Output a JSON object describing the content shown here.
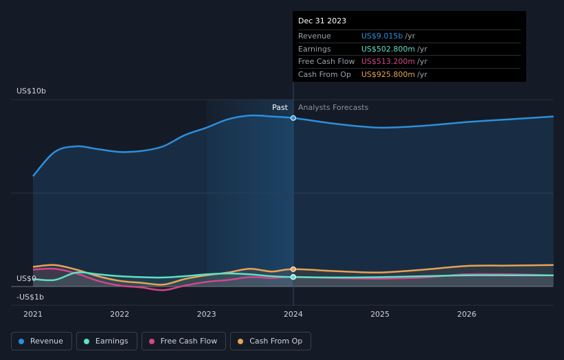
{
  "chart_data": {
    "type": "line",
    "x_ticks": [
      "2021",
      "2022",
      "2023",
      "2024",
      "2025",
      "2026"
    ],
    "y_tick_labels": {
      "top": "US$10b",
      "zero": "US$0",
      "bottom": "-US$1b"
    },
    "ylim": [
      -1000,
      10000
    ],
    "past_label": "Past",
    "forecast_label": "Analysts Forecasts",
    "series": [
      {
        "name": "Revenue",
        "key": "revenue",
        "color": "#2d8fdd",
        "x": [
          2021.0,
          2021.25,
          2021.5,
          2021.75,
          2022.0,
          2022.25,
          2022.5,
          2022.75,
          2023.0,
          2023.25,
          2023.5,
          2023.75,
          2024.0,
          2024.5,
          2025.0,
          2025.5,
          2026.0,
          2026.5,
          2027.0
        ],
        "values": [
          5900,
          7200,
          7500,
          7350,
          7200,
          7250,
          7500,
          8100,
          8500,
          8950,
          9150,
          9100,
          9015,
          8700,
          8500,
          8600,
          8800,
          8950,
          9100
        ]
      },
      {
        "name": "Earnings",
        "key": "earnings",
        "color": "#5ee0c8",
        "x": [
          2021.0,
          2021.25,
          2021.5,
          2021.75,
          2022.0,
          2022.25,
          2022.5,
          2022.75,
          2023.0,
          2023.25,
          2023.5,
          2023.75,
          2024.0,
          2024.5,
          2025.0,
          2025.5,
          2026.0,
          2026.5,
          2027.0
        ],
        "values": [
          400,
          350,
          750,
          650,
          550,
          500,
          480,
          550,
          650,
          700,
          650,
          550,
          502.8,
          480,
          500,
          550,
          600,
          600,
          600
        ]
      },
      {
        "name": "Free Cash Flow",
        "key": "fcf",
        "color": "#d2468c",
        "x": [
          2021.0,
          2021.25,
          2021.5,
          2021.75,
          2022.0,
          2022.25,
          2022.5,
          2022.75,
          2023.0,
          2023.25,
          2023.5,
          2023.75,
          2024.0,
          2024.5,
          2025.0,
          2025.5,
          2026.0,
          2026.5,
          2027.0
        ],
        "values": [
          900,
          950,
          700,
          300,
          50,
          -50,
          -200,
          50,
          250,
          350,
          500,
          450,
          513.2,
          450,
          420,
          480,
          650,
          650,
          600
        ]
      },
      {
        "name": "Cash From Op",
        "key": "cfo",
        "color": "#e8a356",
        "x": [
          2021.0,
          2021.25,
          2021.5,
          2021.75,
          2022.0,
          2022.25,
          2022.5,
          2022.75,
          2023.0,
          2023.25,
          2023.5,
          2023.75,
          2024.0,
          2024.5,
          2025.0,
          2025.5,
          2026.0,
          2026.5,
          2027.0
        ],
        "values": [
          1050,
          1150,
          900,
          550,
          300,
          200,
          100,
          400,
          600,
          750,
          950,
          800,
          925.8,
          820,
          750,
          900,
          1100,
          1120,
          1150
        ]
      }
    ],
    "tooltip": {
      "date": "Dec 31 2023",
      "unit": "/yr",
      "rows": [
        {
          "label": "Revenue",
          "value": "US$9.015b",
          "color": "#2d8fdd"
        },
        {
          "label": "Earnings",
          "value": "US$502.800m",
          "color": "#5ee0c8"
        },
        {
          "label": "Free Cash Flow",
          "value": "US$513.200m",
          "color": "#d2468c"
        },
        {
          "label": "Cash From Op",
          "value": "US$925.800m",
          "color": "#e8a356"
        }
      ]
    },
    "legend": [
      {
        "label": "Revenue",
        "color": "#2d8fdd"
      },
      {
        "label": "Earnings",
        "color": "#5ee0c8"
      },
      {
        "label": "Free Cash Flow",
        "color": "#d2468c"
      },
      {
        "label": "Cash From Op",
        "color": "#e8a356"
      }
    ]
  }
}
